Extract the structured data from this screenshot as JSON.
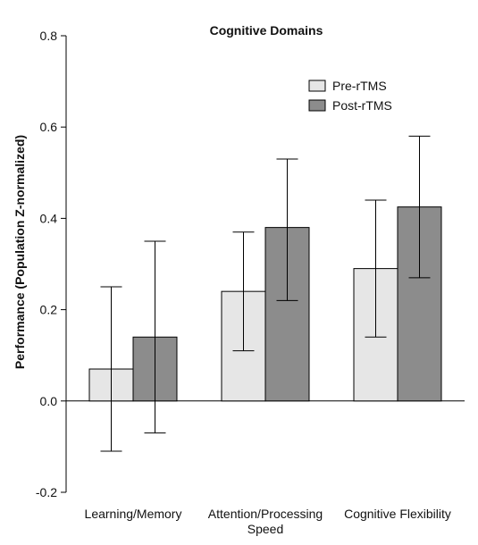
{
  "chart_data": {
    "type": "bar",
    "title": "Cognitive Domains",
    "xlabel": "",
    "ylabel": "Performance (Population Z-normalized)",
    "ylim": [
      -0.2,
      0.8
    ],
    "yticks": [
      "-0.2",
      "0.0",
      "0.2",
      "0.4",
      "0.6",
      "0.8"
    ],
    "categories": [
      "Learning/Memory",
      "Attention/Processing Speed",
      "Cognitive Flexibility"
    ],
    "category_lines": [
      [
        "Learning/Memory"
      ],
      [
        "Attention/Processing",
        "Speed"
      ],
      [
        "Cognitive Flexibility"
      ]
    ],
    "series": [
      {
        "name": "Pre-rTMS",
        "color": "#e6e6e6",
        "values": [
          0.07,
          0.24,
          0.29
        ],
        "error_low": [
          -0.11,
          0.11,
          0.14
        ],
        "error_high": [
          0.25,
          0.37,
          0.44
        ]
      },
      {
        "name": "Post-rTMS",
        "color": "#8c8c8c",
        "values": [
          0.14,
          0.38,
          0.425
        ],
        "error_low": [
          -0.07,
          0.22,
          0.27
        ],
        "error_high": [
          0.35,
          0.53,
          0.58
        ]
      }
    ],
    "legend": "top-right",
    "grid": false
  }
}
